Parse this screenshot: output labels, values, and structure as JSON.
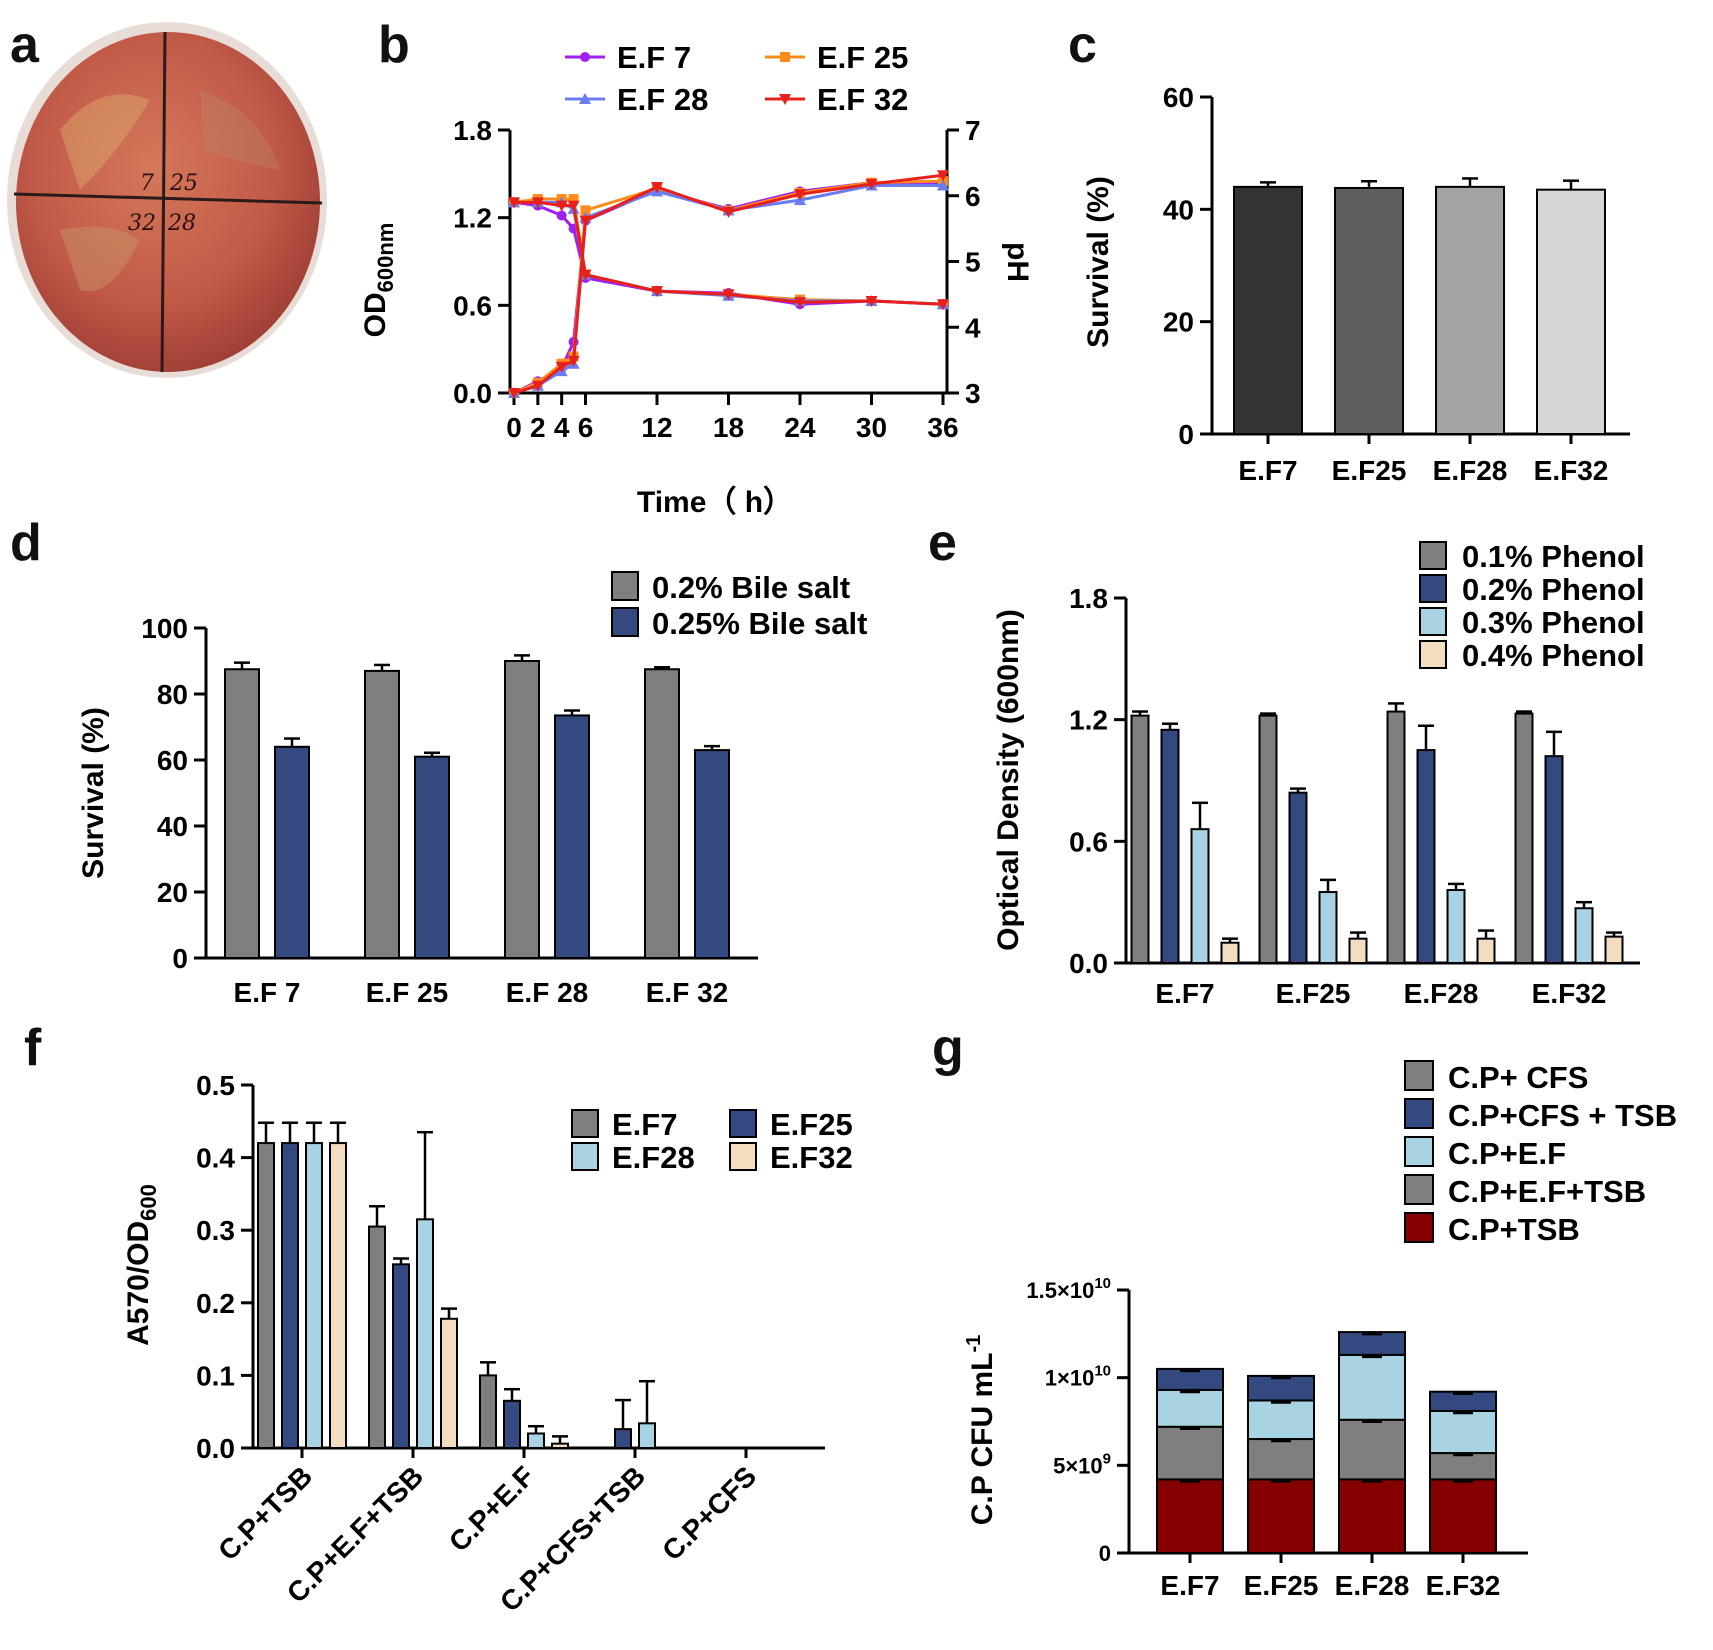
{
  "colors": {
    "grey": "#7f7f7f",
    "navy": "#34497f",
    "lightblue": "#a8d3e3",
    "peach": "#f4dcc1",
    "darkred": "#850000",
    "ef7": "#a020f0",
    "ef25": "#ff8c1a",
    "ef28": "#6b7bf0",
    "ef32": "#e8201c"
  },
  "panels": {
    "a": "a",
    "b": "b",
    "c": "c",
    "d": "d",
    "e": "e",
    "f": "f",
    "g": "g"
  },
  "dish": {
    "label_1": "7",
    "label_2": "25",
    "label_3": "32",
    "label_4": "28"
  },
  "chart_data": [
    {
      "id": "b",
      "type": "line",
      "xlabel": "Time（ h）",
      "ylabel_main": "OD",
      "ylabel_sub": "600nm",
      "y2label": "pH",
      "x_ticks": [
        "0",
        "2",
        "4",
        "6",
        "12",
        "18",
        "24",
        "30",
        "36"
      ],
      "ylim": [
        0,
        1.8
      ],
      "y_ticks": [
        "0.0",
        "0.6",
        "1.2",
        "1.8"
      ],
      "y2lim": [
        3,
        7
      ],
      "y2_ticks": [
        "3",
        "4",
        "5",
        "6",
        "7"
      ],
      "x": [
        0,
        2,
        4,
        5,
        6,
        12,
        18,
        24,
        30,
        36
      ],
      "legend": [
        "E.F 7",
        "E.F 25",
        "E.F 28",
        "E.F 32"
      ],
      "series": [
        {
          "name": "E.F 7",
          "marker": "circle",
          "od": [
            0.0,
            0.08,
            0.17,
            0.35,
            1.18,
            1.39,
            1.26,
            1.38,
            1.44,
            1.43
          ],
          "ph": [
            5.9,
            5.85,
            5.7,
            5.5,
            4.75,
            4.55,
            4.52,
            4.35,
            4.4,
            4.35
          ]
        },
        {
          "name": "E.F 25",
          "marker": "square",
          "od": [
            0.0,
            0.07,
            0.2,
            0.25,
            1.25,
            1.4,
            1.25,
            1.37,
            1.44,
            1.45
          ],
          "ph": [
            5.9,
            5.95,
            5.95,
            5.95,
            4.8,
            4.55,
            4.5,
            4.42,
            4.4,
            4.35
          ]
        },
        {
          "name": "E.F 28",
          "marker": "triangle",
          "od": [
            0.0,
            0.05,
            0.15,
            0.2,
            1.2,
            1.38,
            1.25,
            1.32,
            1.42,
            1.42
          ],
          "ph": [
            5.9,
            5.9,
            5.9,
            5.8,
            4.8,
            4.55,
            4.48,
            4.4,
            4.4,
            4.35
          ]
        },
        {
          "name": "E.F 32",
          "marker": "triangle-down",
          "od": [
            0.0,
            0.05,
            0.18,
            0.22,
            1.18,
            1.41,
            1.24,
            1.36,
            1.43,
            1.49
          ],
          "ph": [
            5.9,
            5.9,
            5.85,
            5.85,
            4.8,
            4.55,
            4.5,
            4.38,
            4.4,
            4.35
          ]
        }
      ]
    },
    {
      "id": "c",
      "type": "bar",
      "ylabel": "Survival (%)",
      "ylim": [
        0,
        60
      ],
      "y_ticks": [
        "0",
        "20",
        "40",
        "60"
      ],
      "categories": [
        "E.F7",
        "E.F25",
        "E.F28",
        "E.F32"
      ],
      "values": [
        44,
        43.8,
        44,
        43.5
      ],
      "errors": [
        0.8,
        1.2,
        1.5,
        1.6
      ],
      "bar_colors": [
        "#333333",
        "#5f5f5f",
        "#a3a3a3",
        "#d6d6d6"
      ]
    },
    {
      "id": "d",
      "type": "bar",
      "ylabel": "Survival (%)",
      "ylim": [
        0,
        100
      ],
      "y_ticks": [
        "0",
        "20",
        "40",
        "60",
        "80",
        "100"
      ],
      "categories": [
        "E.F 7",
        "E.F 25",
        "E.F 28",
        "E.F 32"
      ],
      "series": [
        {
          "name": "0.2% Bile salt",
          "values": [
            87.5,
            87,
            90,
            87.5
          ],
          "errors": [
            2,
            1.8,
            1.7,
            0.6
          ]
        },
        {
          "name": "0.25% Bile salt",
          "values": [
            64,
            61,
            73.5,
            63
          ],
          "errors": [
            2.5,
            1.2,
            1.5,
            1.2
          ]
        }
      ]
    },
    {
      "id": "e",
      "type": "bar",
      "ylabel": "Optical Density (600nm)",
      "ylim": [
        0,
        1.8
      ],
      "y_ticks": [
        "0.0",
        "0.6",
        "1.2",
        "1.8"
      ],
      "categories": [
        "E.F7",
        "E.F25",
        "E.F28",
        "E.F32"
      ],
      "series": [
        {
          "name": "0.1% Phenol",
          "values": [
            1.22,
            1.22,
            1.24,
            1.23
          ],
          "errors": [
            0.02,
            0.01,
            0.04,
            0.01
          ]
        },
        {
          "name": "0.2% Phenol",
          "values": [
            1.15,
            0.84,
            1.05,
            1.02
          ],
          "errors": [
            0.03,
            0.02,
            0.12,
            0.12
          ]
        },
        {
          "name": "0.3% Phenol",
          "values": [
            0.66,
            0.35,
            0.36,
            0.27
          ],
          "errors": [
            0.13,
            0.06,
            0.03,
            0.03
          ]
        },
        {
          "name": "0.4% Phenol",
          "values": [
            0.1,
            0.12,
            0.12,
            0.13
          ],
          "errors": [
            0.02,
            0.03,
            0.04,
            0.02
          ]
        }
      ]
    },
    {
      "id": "f",
      "type": "bar",
      "ylabel_main": "A570/OD",
      "ylabel_sub": "600",
      "ylim": [
        0,
        0.5
      ],
      "y_ticks": [
        "0.0",
        "0.1",
        "0.2",
        "0.3",
        "0.4",
        "0.5"
      ],
      "categories": [
        "C.P+TSB",
        "C.P+E.F+TSB",
        "C.P+E.F",
        "C.P+CFS+TSB",
        "C.P+CFS"
      ],
      "series": [
        {
          "name": "E.F7",
          "values": [
            0.42,
            0.305,
            0.1,
            0,
            0
          ],
          "errors": [
            0.028,
            0.028,
            0.018,
            0,
            0
          ]
        },
        {
          "name": "E.F25",
          "values": [
            0.42,
            0.253,
            0.065,
            0.026,
            0
          ],
          "errors": [
            0.028,
            0.008,
            0.016,
            0.04,
            0
          ]
        },
        {
          "name": "E.F28",
          "values": [
            0.42,
            0.315,
            0.02,
            0.034,
            0
          ],
          "errors": [
            0.028,
            0.12,
            0.01,
            0.058,
            0
          ]
        },
        {
          "name": "E.F32",
          "values": [
            0.42,
            0.178,
            0.006,
            0,
            0
          ],
          "errors": [
            0.028,
            0.014,
            0.01,
            0,
            0
          ]
        }
      ]
    },
    {
      "id": "g",
      "type": "bar",
      "stacked": true,
      "ylabel_main": "C.P CFU mL",
      "ylabel_sup": "-1",
      "ylim": [
        0,
        15000000000
      ],
      "y_ticks": [
        "0",
        "5×10",
        "1×10",
        "1.5×10"
      ],
      "y_tick_exps": [
        "",
        "9",
        "10",
        "10"
      ],
      "categories": [
        "E.F7",
        "E.F25",
        "E.F28",
        "E.F32"
      ],
      "legend": [
        "C.P+ CFS",
        "C.P+CFS + TSB",
        "C.P+E.F",
        "C.P+E.F+TSB",
        "C.P+TSB"
      ],
      "series": [
        {
          "name": "C.P+TSB",
          "values": [
            4200000000,
            4200000000,
            4200000000,
            4200000000
          ]
        },
        {
          "name": "C.P+E.F+TSB",
          "values": [
            3000000000,
            2300000000,
            3400000000,
            1500000000
          ]
        },
        {
          "name": "C.P+E.F",
          "values": [
            2100000000,
            2200000000,
            3700000000,
            2400000000
          ]
        },
        {
          "name": "C.P+CFS + TSB",
          "values": [
            1200000000,
            1400000000,
            1300000000,
            1100000000
          ]
        },
        {
          "name": "C.P+ CFS",
          "values": [
            0,
            0,
            0,
            0
          ]
        }
      ]
    }
  ]
}
